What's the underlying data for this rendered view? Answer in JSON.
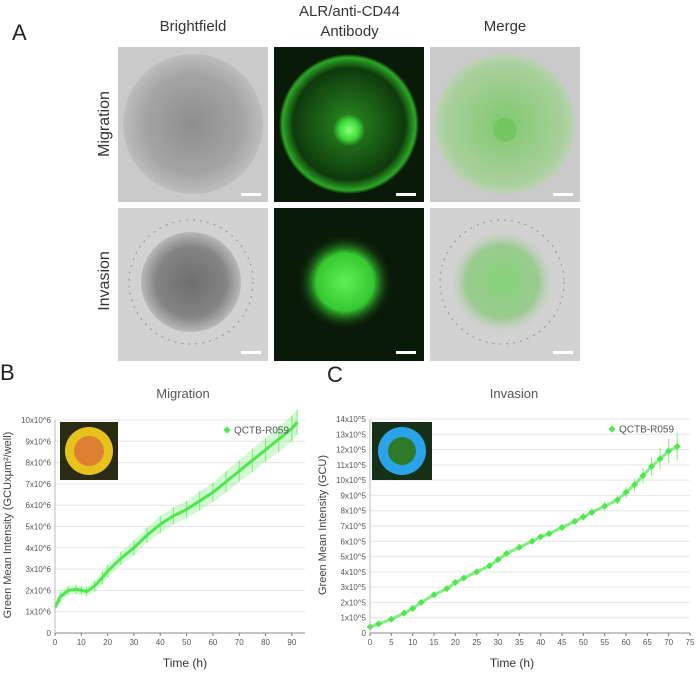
{
  "panel_labels": {
    "a": "A",
    "b": "B",
    "c": "C"
  },
  "panel_a": {
    "columns": [
      "Brightfield",
      "ALR/anti-CD44\nAntibody",
      "Merge"
    ],
    "rows": [
      "Migration",
      "Invasion"
    ],
    "colors": {
      "brightfield_bg": "#c9c9c9",
      "fluor_bg": "#0a1a08",
      "fluor_green": "#3fdc3a"
    }
  },
  "chart_data": [
    {
      "type": "line",
      "title": "Migration",
      "xlabel": "Time (h)",
      "ylabel": "Green Mean Intensity (GCUxµm²/well)",
      "xlim": [
        0,
        95
      ],
      "ylim": [
        0,
        10
      ],
      "x_ticks": [
        0,
        10,
        20,
        30,
        40,
        50,
        60,
        70,
        80,
        90
      ],
      "y_tick_labels": [
        "0",
        "1x10^6",
        "2x10^6",
        "3x10^6",
        "4x10^6",
        "5x10^6",
        "6x10^6",
        "7x10^6",
        "8x10^6",
        "9x10^6",
        "10x10^6"
      ],
      "y_scale_note": "values in units of 10^6",
      "legend": "top-right",
      "color": "#4ee84e",
      "series": [
        {
          "name": "QCTB-R059",
          "x": [
            0,
            2,
            5,
            8,
            10,
            12,
            15,
            18,
            20,
            25,
            30,
            35,
            40,
            45,
            50,
            55,
            60,
            65,
            70,
            75,
            80,
            85,
            90,
            92
          ],
          "y": [
            1.2,
            1.7,
            2.0,
            2.05,
            2.0,
            1.95,
            2.2,
            2.6,
            2.9,
            3.5,
            4.0,
            4.6,
            5.1,
            5.5,
            5.8,
            6.2,
            6.6,
            7.1,
            7.6,
            8.1,
            8.6,
            9.1,
            9.6,
            9.9
          ],
          "err": [
            0.2,
            0.25,
            0.2,
            0.2,
            0.2,
            0.2,
            0.25,
            0.3,
            0.3,
            0.3,
            0.35,
            0.35,
            0.4,
            0.4,
            0.4,
            0.45,
            0.45,
            0.5,
            0.5,
            0.55,
            0.55,
            0.6,
            0.6,
            0.6
          ]
        }
      ]
    },
    {
      "type": "scatter",
      "title": "Invasion",
      "xlabel": "Time (h)",
      "ylabel": "Green Mean Intensity (GCU)",
      "xlim": [
        0,
        75
      ],
      "ylim": [
        0,
        14
      ],
      "x_ticks": [
        0,
        5,
        10,
        15,
        20,
        25,
        30,
        35,
        40,
        45,
        50,
        55,
        60,
        65,
        70,
        75
      ],
      "y_tick_labels": [
        "0",
        "1x10^5",
        "2x10^5",
        "3x10^5",
        "4x10^5",
        "5x10^5",
        "6x10^5",
        "7x10^5",
        "8x10^5",
        "9x10^5",
        "10x10^5",
        "11x10^5",
        "12x10^5",
        "13x10^5",
        "14x10^5"
      ],
      "y_scale_note": "values in units of 10^5",
      "legend": "top-right",
      "color": "#4ee84e",
      "series": [
        {
          "name": "QCTB-R059",
          "x": [
            0,
            2,
            5,
            8,
            10,
            12,
            15,
            18,
            20,
            22,
            25,
            28,
            30,
            32,
            35,
            38,
            40,
            42,
            45,
            48,
            50,
            52,
            55,
            58,
            60,
            62,
            64,
            66,
            68,
            70,
            72
          ],
          "y": [
            0.4,
            0.6,
            0.9,
            1.3,
            1.6,
            2.0,
            2.5,
            2.9,
            3.3,
            3.6,
            4.0,
            4.4,
            4.8,
            5.2,
            5.6,
            6.0,
            6.3,
            6.5,
            6.9,
            7.3,
            7.6,
            7.9,
            8.3,
            8.7,
            9.2,
            9.7,
            10.3,
            10.9,
            11.4,
            11.9,
            12.2
          ],
          "err": [
            0.2,
            0.2,
            0.2,
            0.2,
            0.2,
            0.2,
            0.2,
            0.2,
            0.2,
            0.2,
            0.2,
            0.2,
            0.2,
            0.2,
            0.2,
            0.2,
            0.2,
            0.2,
            0.2,
            0.2,
            0.25,
            0.25,
            0.3,
            0.3,
            0.35,
            0.4,
            0.5,
            0.6,
            0.7,
            0.8,
            0.9
          ]
        }
      ]
    }
  ]
}
